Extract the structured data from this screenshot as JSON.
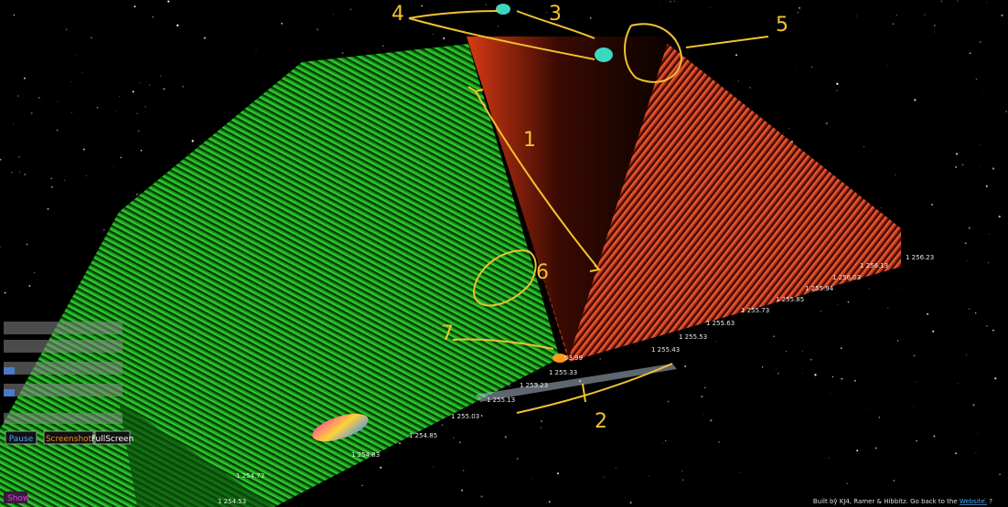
{
  "annotations": [
    "1",
    "2",
    "3",
    "4",
    "5",
    "6",
    "7"
  ],
  "price_labels": [
    "1 254.53",
    "1 254.73",
    "1 254.83",
    "1 254.85",
    "1 255.03",
    "1 255.13",
    "1 255.23",
    "1 255.33",
    "53.99",
    "1 255.43",
    "1 255.53",
    "1 255.63",
    "1 255.73",
    "1 255.85",
    "1 255.94",
    "1 256.03",
    "1 256.13",
    "1 256.23"
  ],
  "controls": {
    "buttons": [
      "Pause",
      "Screenshot",
      "FullScreen"
    ],
    "toggle": "Show"
  },
  "footer": {
    "text": "Built by KJ4, Ramer & Hibbitz. Go back to the",
    "link": "Website.",
    "help": "?"
  }
}
